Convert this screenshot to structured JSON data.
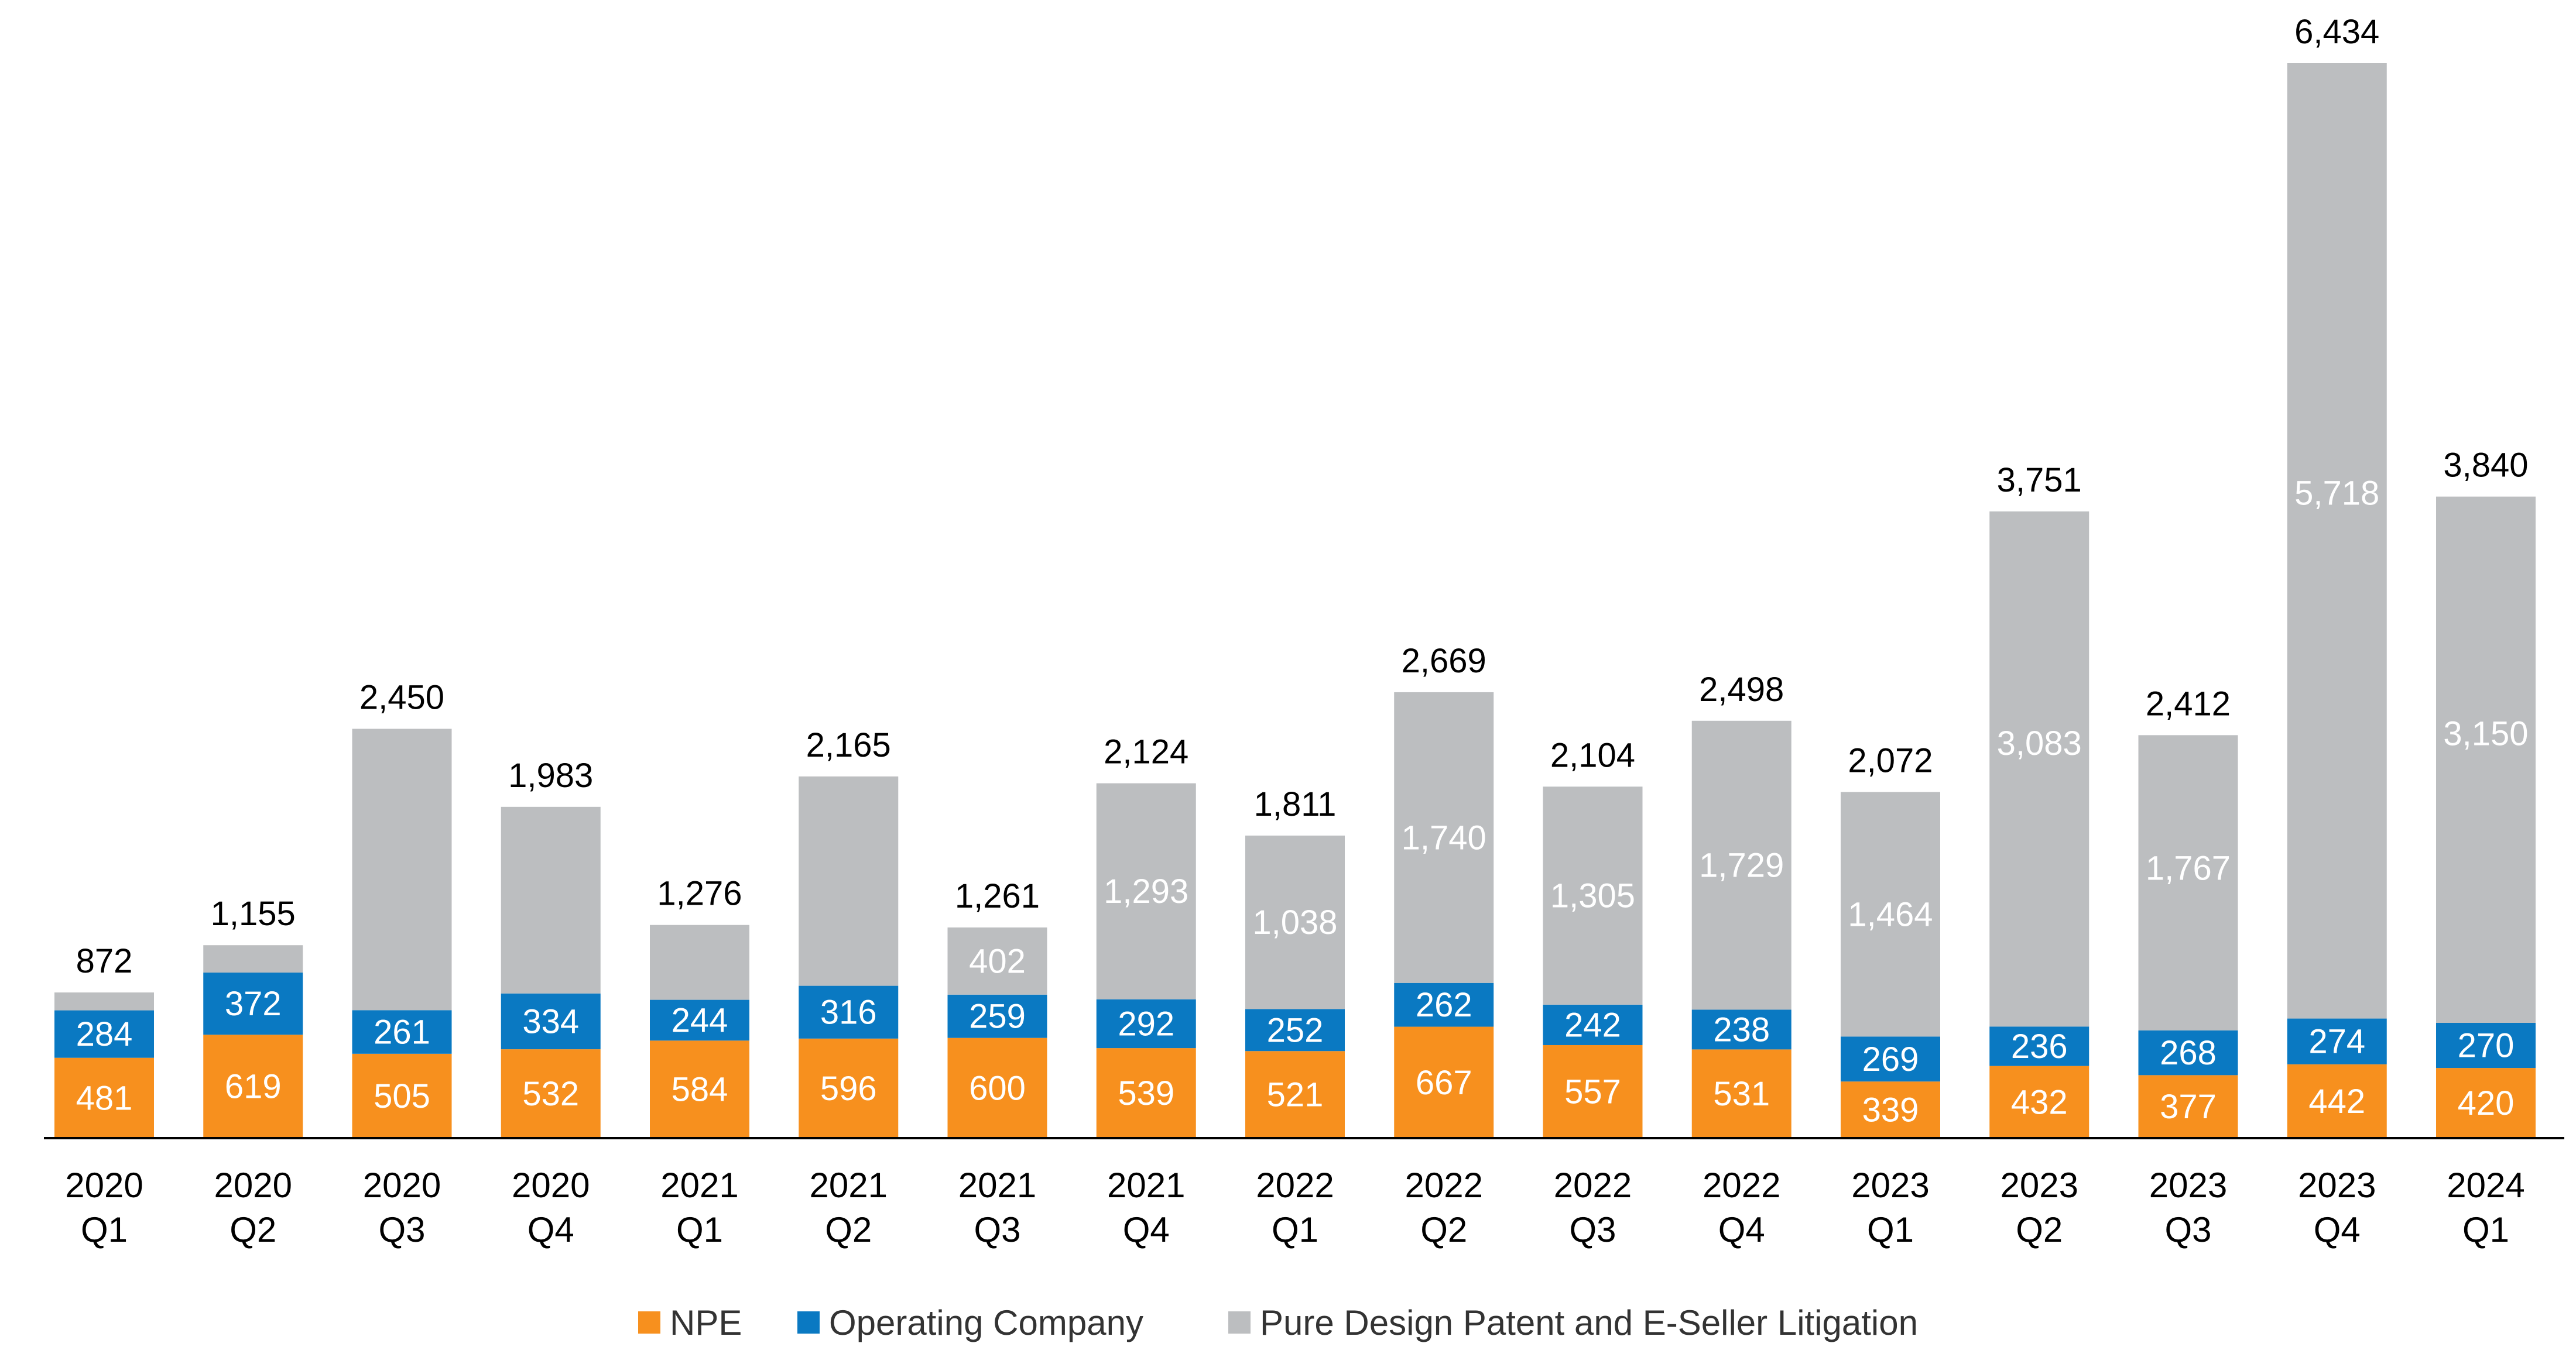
{
  "chart_data": {
    "type": "bar",
    "stacked": true,
    "categories": [
      "2020 Q1",
      "2020 Q2",
      "2020 Q3",
      "2020 Q4",
      "2021 Q1",
      "2021 Q2",
      "2021 Q3",
      "2021 Q4",
      "2022 Q1",
      "2022 Q2",
      "2022 Q3",
      "2022 Q4",
      "2023 Q1",
      "2023 Q2",
      "2023 Q3",
      "2023 Q4",
      "2024 Q1"
    ],
    "series": [
      {
        "name": "NPE",
        "color": "#F7901E",
        "values": [
          481,
          619,
          505,
          532,
          584,
          596,
          600,
          539,
          521,
          667,
          557,
          531,
          339,
          432,
          377,
          442,
          420
        ]
      },
      {
        "name": "Operating Company",
        "color": "#0A79C2",
        "values": [
          284,
          372,
          261,
          334,
          244,
          316,
          259,
          292,
          252,
          262,
          242,
          238,
          269,
          236,
          268,
          274,
          270
        ]
      },
      {
        "name": "Pure Design Patent and E-Seller Litigation",
        "color": "#BCBEC0",
        "values": [
          107,
          164,
          1684,
          1117,
          448,
          1253,
          402,
          1293,
          1038,
          1740,
          1305,
          1729,
          1464,
          3083,
          1767,
          5718,
          3150
        ]
      }
    ],
    "segment_labels": {
      "NPE": [
        "481",
        "619",
        "505",
        "532",
        "584",
        "596",
        "600",
        "539",
        "521",
        "667",
        "557",
        "531",
        "339",
        "432",
        "377",
        "442",
        "420"
      ],
      "Operating Company": [
        "284",
        "372",
        "261",
        "334",
        "244",
        "316",
        "259",
        "292",
        "252",
        "262",
        "242",
        "238",
        "269",
        "236",
        "268",
        "274",
        "270"
      ],
      "Pure Design Patent and E-Seller Litigation": [
        "",
        "",
        "",
        "",
        "",
        "",
        "402",
        "1,293",
        "1,038",
        "1,740",
        "1,305",
        "1,729",
        "1,464",
        "3,083",
        "1,767",
        "5,718",
        "3,150"
      ]
    },
    "totals": [
      872,
      1155,
      2450,
      1983,
      1276,
      2165,
      1261,
      2124,
      1811,
      2669,
      2104,
      2498,
      2072,
      3751,
      2412,
      6434,
      3840
    ],
    "total_labels": [
      "872",
      "1,155",
      "2,450",
      "1,983",
      "1,276",
      "2,165",
      "1,261",
      "2,124",
      "1,811",
      "2,669",
      "2,104",
      "2,498",
      "2,072",
      "3,751",
      "2,412",
      "6,434",
      "3,840"
    ],
    "tick_labels": [
      [
        "2020",
        "Q1"
      ],
      [
        "2020",
        "Q2"
      ],
      [
        "2020",
        "Q3"
      ],
      [
        "2020",
        "Q4"
      ],
      [
        "2021",
        "Q1"
      ],
      [
        "2021",
        "Q2"
      ],
      [
        "2021",
        "Q3"
      ],
      [
        "2021",
        "Q4"
      ],
      [
        "2022",
        "Q1"
      ],
      [
        "2022",
        "Q2"
      ],
      [
        "2022",
        "Q3"
      ],
      [
        "2022",
        "Q4"
      ],
      [
        "2023",
        "Q1"
      ],
      [
        "2023",
        "Q2"
      ],
      [
        "2023",
        "Q3"
      ],
      [
        "2023",
        "Q4"
      ],
      [
        "2024",
        "Q1"
      ]
    ],
    "ylim": [
      0,
      6434
    ],
    "grid": false,
    "legend_position": "bottom",
    "title": "",
    "xlabel": "",
    "ylabel": ""
  }
}
